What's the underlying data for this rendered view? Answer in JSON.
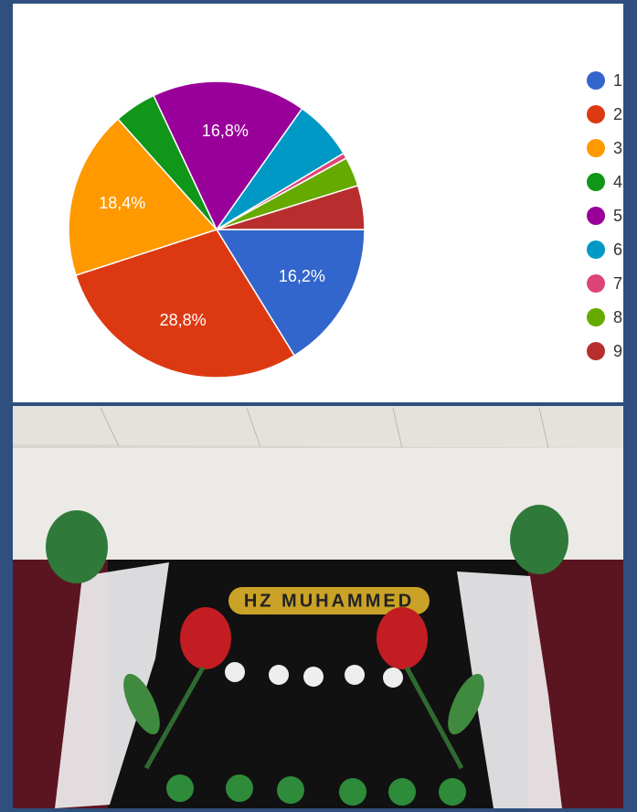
{
  "chart_data": {
    "type": "pie",
    "categories": [
      "1",
      "2",
      "3",
      "4",
      "5",
      "6",
      "7",
      "8",
      "9"
    ],
    "values": [
      16.2,
      28.8,
      18.4,
      4.6,
      16.8,
      6.6,
      0.6,
      3.2,
      4.8
    ],
    "value_labels": [
      "16,2%",
      "28,8%",
      "18,4%",
      null,
      "16,8%",
      null,
      null,
      null,
      null
    ],
    "colors": [
      "#3366cc",
      "#dc3912",
      "#ff9900",
      "#109618",
      "#990099",
      "#0099c6",
      "#dd4477",
      "#66aa00",
      "#b82e2e"
    ],
    "legend": "right"
  },
  "photo": {
    "banner": "HZ MUHAMMED"
  }
}
